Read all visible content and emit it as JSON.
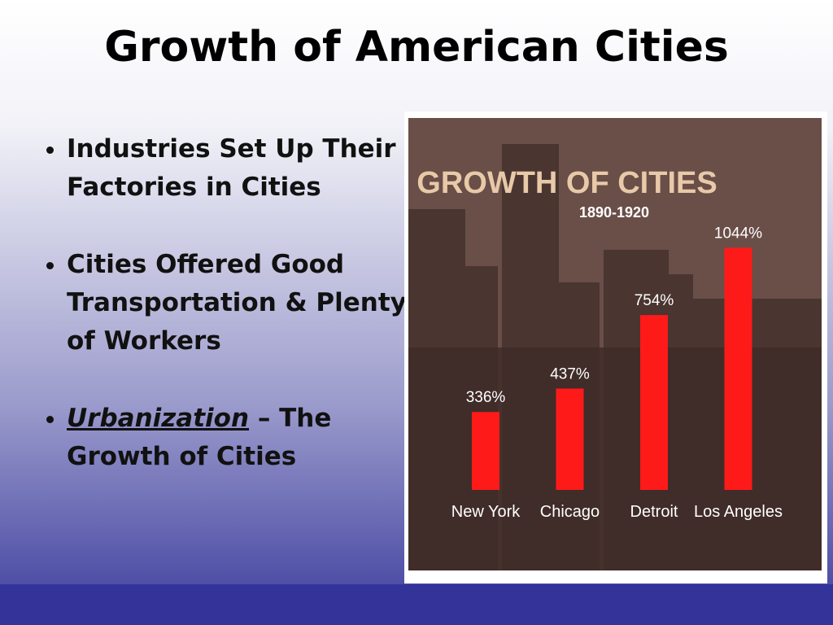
{
  "title": "Growth of American Cities",
  "bullets": [
    {
      "text": "Industries Set Up Their Factories in Cities"
    },
    {
      "text": "Cities Offered Good Transportation & Plenty of Workers"
    },
    {
      "term": "Urbanization",
      "text": "– The Growth of Cities"
    }
  ],
  "chart_data": {
    "type": "bar",
    "title": "GROWTH OF CITIES",
    "subtitle": "1890-1920",
    "categories": [
      "New York",
      "Chicago",
      "Detroit",
      "Los Angeles"
    ],
    "values": [
      336,
      437,
      754,
      1044
    ],
    "value_labels": [
      "336%",
      "437%",
      "754%",
      "1044%"
    ],
    "color": "#ff1a1a"
  }
}
